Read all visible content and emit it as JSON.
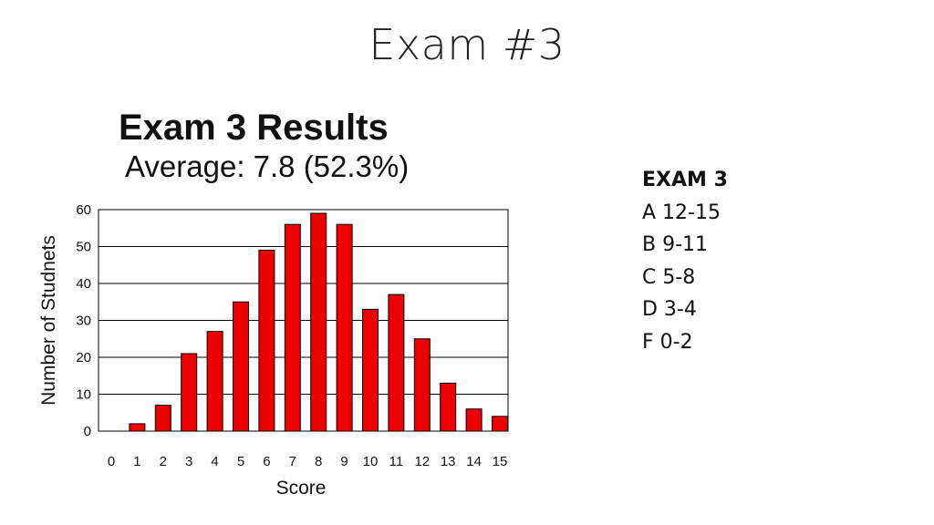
{
  "slide_title": "Exam #3",
  "grades": {
    "heading": "EXAM 3",
    "items": [
      "A 12-15",
      "B 9-11",
      "C 5-8",
      "D 3-4",
      "F 0-2"
    ]
  },
  "colors": {
    "bar": "#ee0000",
    "grid": "#000000"
  },
  "chart_data": {
    "type": "bar",
    "title": "Exam 3 Results",
    "subtitle": "Average: 7.8 (52.3%)",
    "xlabel": "Score",
    "ylabel": "Number of Studnets",
    "categories": [
      "0",
      "1",
      "2",
      "3",
      "4",
      "5",
      "6",
      "7",
      "8",
      "9",
      "10",
      "11",
      "12",
      "13",
      "14",
      "15"
    ],
    "values": [
      0,
      2,
      7,
      21,
      27,
      35,
      49,
      56,
      59,
      56,
      33,
      37,
      25,
      13,
      6,
      4
    ],
    "ylim": [
      0,
      60
    ],
    "yticks": [
      "0",
      "10",
      "20",
      "30",
      "40",
      "50",
      "60"
    ],
    "grid": true
  }
}
